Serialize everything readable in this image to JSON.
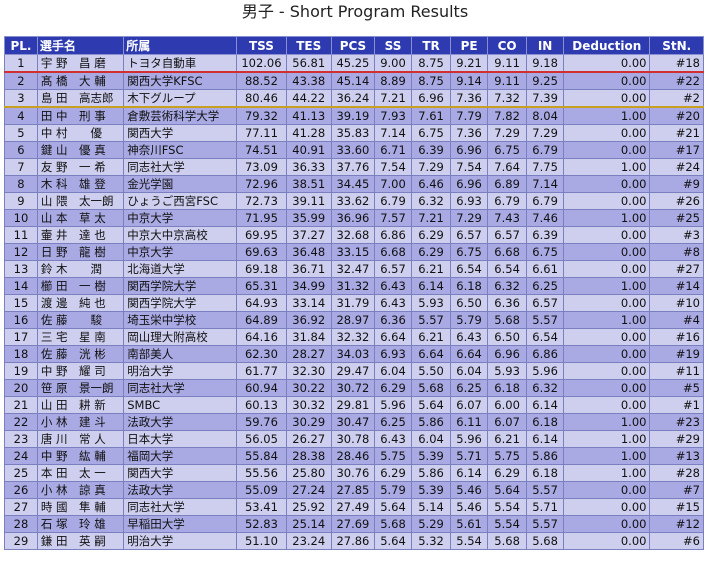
{
  "title": "男子 - Short Program Results",
  "headers": [
    "PL.",
    "選手名",
    "所属",
    "TSS",
    "TES",
    "PCS",
    "SS",
    "TR",
    "PE",
    "CO",
    "IN",
    "Deduction",
    "StN."
  ],
  "rows": [
    [
      "1",
      "宇 野　昌 磨",
      "トヨタ自動車",
      "102.06",
      "56.81",
      "45.25",
      "9.00",
      "8.75",
      "9.21",
      "9.11",
      "9.18",
      "0.00",
      "#18"
    ],
    [
      "2",
      "髙 橋　大 輔",
      "関西大学KFSC",
      "88.52",
      "43.38",
      "45.14",
      "8.89",
      "8.75",
      "9.14",
      "9.11",
      "9.25",
      "0.00",
      "#22"
    ],
    [
      "3",
      "島 田　高志郎",
      "木下グループ",
      "80.46",
      "44.22",
      "36.24",
      "7.21",
      "6.96",
      "7.36",
      "7.32",
      "7.39",
      "0.00",
      "#2"
    ],
    [
      "4",
      "田 中　刑 事",
      "倉敷芸術科学大学",
      "79.32",
      "41.13",
      "39.19",
      "7.93",
      "7.61",
      "7.79",
      "7.82",
      "8.04",
      "1.00",
      "#20"
    ],
    [
      "5",
      "中 村　　優",
      "関西大学",
      "77.11",
      "41.28",
      "35.83",
      "7.14",
      "6.75",
      "7.36",
      "7.29",
      "7.29",
      "0.00",
      "#21"
    ],
    [
      "6",
      "鍵 山　優 真",
      "神奈川FSC",
      "74.51",
      "40.91",
      "33.60",
      "6.71",
      "6.39",
      "6.96",
      "6.75",
      "6.79",
      "0.00",
      "#17"
    ],
    [
      "7",
      "友 野　一 希",
      "同志社大学",
      "73.09",
      "36.33",
      "37.76",
      "7.54",
      "7.29",
      "7.54",
      "7.64",
      "7.75",
      "1.00",
      "#24"
    ],
    [
      "8",
      "木 科　雄 登",
      "金光学園",
      "72.96",
      "38.51",
      "34.45",
      "7.00",
      "6.46",
      "6.96",
      "6.89",
      "7.14",
      "0.00",
      "#9"
    ],
    [
      "9",
      "山 隈　太一朗",
      "ひょうご西宮FSC",
      "72.73",
      "39.11",
      "33.62",
      "6.79",
      "6.32",
      "6.93",
      "6.79",
      "6.79",
      "0.00",
      "#26"
    ],
    [
      "10",
      "山 本　草 太",
      "中京大学",
      "71.95",
      "35.99",
      "36.96",
      "7.57",
      "7.21",
      "7.29",
      "7.43",
      "7.46",
      "1.00",
      "#25"
    ],
    [
      "11",
      "壷 井　達 也",
      "中京大中京高校",
      "69.95",
      "37.27",
      "32.68",
      "6.86",
      "6.29",
      "6.57",
      "6.57",
      "6.39",
      "0.00",
      "#3"
    ],
    [
      "12",
      "日 野　龍 樹",
      "中京大学",
      "69.63",
      "36.48",
      "33.15",
      "6.68",
      "6.29",
      "6.75",
      "6.68",
      "6.75",
      "0.00",
      "#8"
    ],
    [
      "13",
      "鈴 木　　潤",
      "北海道大学",
      "69.18",
      "36.71",
      "32.47",
      "6.57",
      "6.21",
      "6.54",
      "6.54",
      "6.61",
      "0.00",
      "#27"
    ],
    [
      "14",
      "櫛 田　一 樹",
      "関西学院大学",
      "65.31",
      "34.99",
      "31.32",
      "6.43",
      "6.14",
      "6.18",
      "6.32",
      "6.25",
      "1.00",
      "#14"
    ],
    [
      "15",
      "渡 邊　純 也",
      "関西学院大学",
      "64.93",
      "33.14",
      "31.79",
      "6.43",
      "5.93",
      "6.50",
      "6.36",
      "6.57",
      "0.00",
      "#10"
    ],
    [
      "16",
      "佐 藤　　駿",
      "埼玉栄中学校",
      "64.89",
      "36.92",
      "28.97",
      "6.36",
      "5.57",
      "5.79",
      "5.68",
      "5.57",
      "1.00",
      "#4"
    ],
    [
      "17",
      "三 宅　星 南",
      "岡山理大附高校",
      "64.16",
      "31.84",
      "32.32",
      "6.64",
      "6.21",
      "6.43",
      "6.50",
      "6.54",
      "0.00",
      "#16"
    ],
    [
      "18",
      "佐 藤　洸 彬",
      "南部美人",
      "62.30",
      "28.27",
      "34.03",
      "6.93",
      "6.64",
      "6.64",
      "6.96",
      "6.86",
      "0.00",
      "#19"
    ],
    [
      "19",
      "中 野　耀 司",
      "明治大学",
      "61.77",
      "32.30",
      "29.47",
      "6.04",
      "5.50",
      "6.04",
      "5.93",
      "5.96",
      "0.00",
      "#11"
    ],
    [
      "20",
      "笹 原　景一朗",
      "同志社大学",
      "60.94",
      "30.22",
      "30.72",
      "6.29",
      "5.68",
      "6.25",
      "6.18",
      "6.32",
      "0.00",
      "#5"
    ],
    [
      "21",
      "山 田　耕 新",
      "SMBC",
      "60.13",
      "30.32",
      "29.81",
      "5.96",
      "5.64",
      "6.07",
      "6.00",
      "6.14",
      "0.00",
      "#1"
    ],
    [
      "22",
      "小 林　建 斗",
      "法政大学",
      "59.76",
      "30.29",
      "30.47",
      "6.25",
      "5.86",
      "6.11",
      "6.07",
      "6.18",
      "1.00",
      "#23"
    ],
    [
      "23",
      "唐 川　常 人",
      "日本大学",
      "56.05",
      "26.27",
      "30.78",
      "6.43",
      "6.04",
      "5.96",
      "6.21",
      "6.14",
      "1.00",
      "#29"
    ],
    [
      "24",
      "中 野　紘 輔",
      "福岡大学",
      "55.84",
      "28.38",
      "28.46",
      "5.75",
      "5.39",
      "5.71",
      "5.75",
      "5.86",
      "1.00",
      "#13"
    ],
    [
      "25",
      "本 田　太 一",
      "関西大学",
      "55.56",
      "25.80",
      "30.76",
      "6.29",
      "5.86",
      "6.14",
      "6.29",
      "6.18",
      "1.00",
      "#28"
    ],
    [
      "26",
      "小 林　諒 真",
      "法政大学",
      "55.09",
      "27.24",
      "27.85",
      "5.79",
      "5.39",
      "5.46",
      "5.64",
      "5.57",
      "0.00",
      "#7"
    ],
    [
      "27",
      "時 國　隼 輔",
      "同志社大学",
      "53.41",
      "25.92",
      "27.49",
      "5.64",
      "5.14",
      "5.46",
      "5.54",
      "5.71",
      "0.00",
      "#15"
    ],
    [
      "28",
      "石 塚　玲 雄",
      "早稲田大学",
      "52.83",
      "25.14",
      "27.69",
      "5.68",
      "5.29",
      "5.61",
      "5.54",
      "5.57",
      "0.00",
      "#12"
    ],
    [
      "29",
      "鎌 田　英 嗣",
      "明治大学",
      "51.10",
      "23.24",
      "27.86",
      "5.64",
      "5.32",
      "5.54",
      "5.68",
      "5.68",
      "0.00",
      "#6"
    ]
  ],
  "colors": {
    "header_bg": "#2e3ab0",
    "row_light": "#ceceef",
    "row_dark": "#a9a9e3"
  }
}
